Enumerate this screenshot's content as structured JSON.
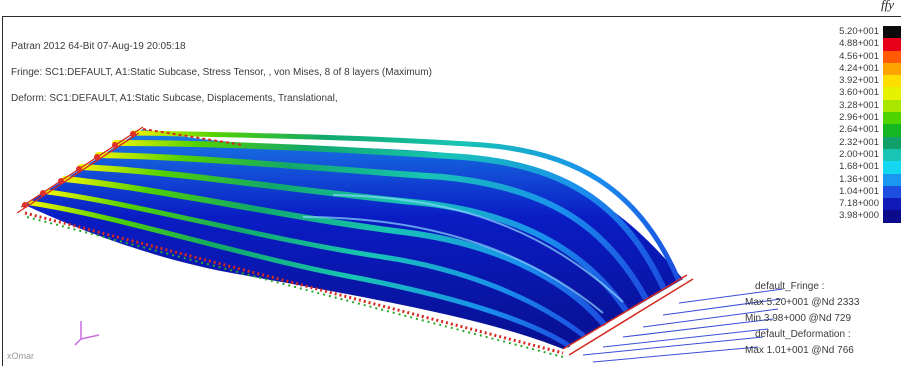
{
  "caption_fragment": "ffy",
  "header": {
    "title": "Patran 2012 64-Bit 07-Aug-19 20:05:18",
    "fringe": "Fringe: SC1:DEFAULT, A1:Static Subcase, Stress Tensor, , von Mises, 8 of 8 layers (Maximum)",
    "deform": "Deform: SC1:DEFAULT, A1:Static Subcase, Displacements, Translational,"
  },
  "legend": {
    "items": [
      {
        "label": "5.20+001",
        "color": "#0a0a0a"
      },
      {
        "label": "4.88+001",
        "color": "#e8001a"
      },
      {
        "label": "4.56+001",
        "color": "#ff5a00"
      },
      {
        "label": "4.24+001",
        "color": "#ffa300"
      },
      {
        "label": "3.92+001",
        "color": "#ffde00"
      },
      {
        "label": "3.60+001",
        "color": "#e6f200"
      },
      {
        "label": "3.28+001",
        "color": "#a8e600"
      },
      {
        "label": "2.96+001",
        "color": "#4fd400"
      },
      {
        "label": "2.64+001",
        "color": "#15b624"
      },
      {
        "label": "2.32+001",
        "color": "#11a06a"
      },
      {
        "label": "2.00+001",
        "color": "#18c4b4"
      },
      {
        "label": "1.68+001",
        "color": "#14d8f2"
      },
      {
        "label": "1.36+001",
        "color": "#1a97ee"
      },
      {
        "label": "1.04+001",
        "color": "#1c4fe0"
      },
      {
        "label": "7.18+000",
        "color": "#1018b8"
      },
      {
        "label": "3.98+000",
        "color": "#0a0a8a"
      }
    ]
  },
  "summary": {
    "fringe_name": "default_Fringe :",
    "fringe_max": "Max 5.20+001 @Nd 2333",
    "fringe_min": "Min 3.98+000 @Nd 729",
    "deform_name": "default_Deformation :",
    "deform_max": "Max 1.01+001 @Nd 766"
  },
  "corner_label": "xOmar",
  "colors": {
    "border": "#2b2b2b",
    "text": "#3a3a3a",
    "constraint": "#d42a20",
    "triad": "#c86ee0",
    "deep_blue": "#0a14b4",
    "green": "#1fb22a"
  }
}
